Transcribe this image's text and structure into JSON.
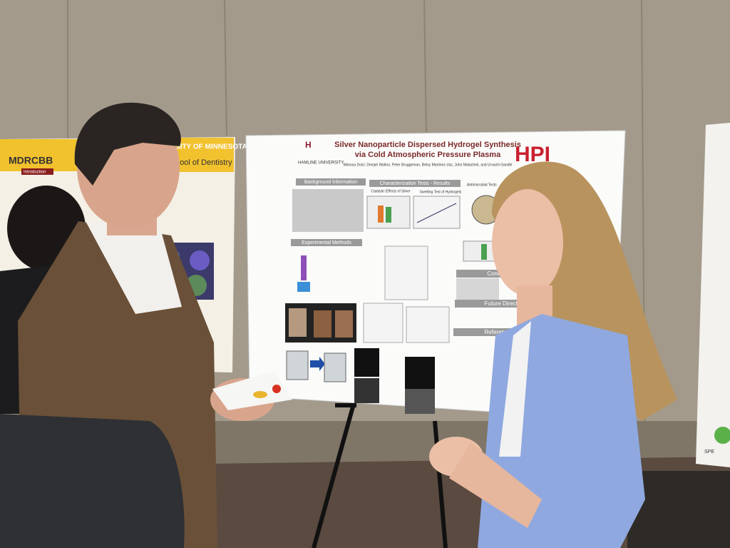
{
  "main_poster": {
    "title_line1": "Silver Nanoparticle Dispersed Hydrogel Synthesis",
    "title_line2": "via Cold Atmospheric Pressure Plasma",
    "institution": "HAMLINE UNIVERSITY",
    "logo": "HPI",
    "authors": "Mimosa Dolci, Deejah Walton, Peter Bruggeman, Betsy Martinez-Vaz, John Matachek, and Urvashi Gandhi",
    "sections": {
      "background": "Background Information",
      "results": "Characterization Tests - Results",
      "catalytic": "Catalytic Effects of Silver",
      "swelling": "Swelling Test of Hydrogels",
      "antimicrobial": "Antimicrobial Tests",
      "methods": "Experimental Methods",
      "conclusions": "Conclusions",
      "future": "Future Directions",
      "references": "References"
    }
  },
  "left_poster": {
    "logo": "MDRCBB",
    "university": "SITY OF MINNESOTA",
    "school": "hool of Dentistry",
    "intro": "Introduction"
  },
  "right_poster": {
    "logo": "SPE"
  }
}
